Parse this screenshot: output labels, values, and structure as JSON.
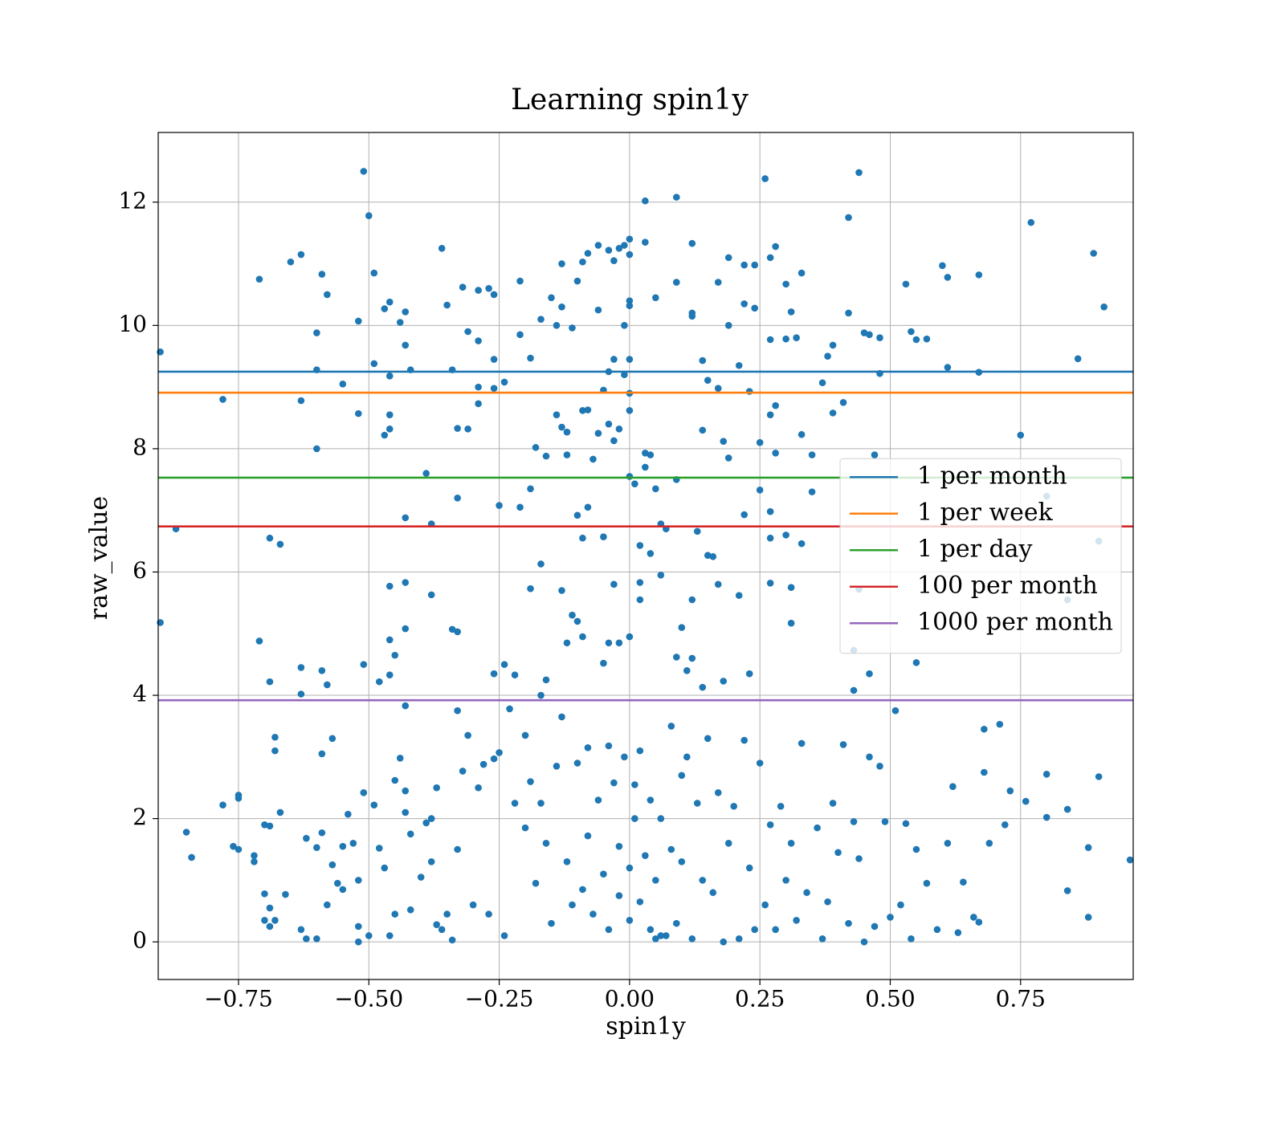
{
  "chart_data": {
    "type": "scatter",
    "title": "Learning spin1y",
    "xlabel": "spin1y",
    "ylabel": "raw_value",
    "color": "#1f77b4",
    "grid": true,
    "legend_loc": "center right",
    "xlim": [
      -0.904,
      0.966
    ],
    "ylim": [
      -0.61,
      13.13
    ],
    "xticks": [
      {
        "value": -0.75,
        "label": "−0.75"
      },
      {
        "value": -0.5,
        "label": "−0.50"
      },
      {
        "value": -0.25,
        "label": "−0.25"
      },
      {
        "value": 0,
        "label": "0.00"
      },
      0.25,
      {
        "value": 0.5,
        "label": "0.50"
      },
      0.75
    ],
    "yticks": [
      0,
      2,
      4,
      6,
      8,
      10,
      12
    ],
    "hlines": [
      {
        "name": "1 per month",
        "color": "#1f77b4",
        "value": 9.25
      },
      {
        "name": "1 per week",
        "color": "#ff7f0e",
        "value": 8.91
      },
      {
        "name": "1 per day",
        "color": "#2ca02c",
        "value": 7.53
      },
      {
        "name": "100 per month",
        "color": "#d62728",
        "value": 6.74
      },
      {
        "name": "1000 per month",
        "color": "#9467bd",
        "value": 3.92
      }
    ],
    "x": [
      -0.51,
      -0.5,
      -0.36,
      -0.63,
      -0.65,
      -0.71,
      -0.59,
      -0.58,
      -0.49,
      -0.47,
      -0.46,
      -0.44,
      -0.43,
      -0.52,
      -0.6,
      -0.43,
      -0.49,
      -0.46,
      -0.42,
      -0.6,
      -0.55,
      -0.9,
      -0.78,
      -0.63,
      -0.52,
      -0.46,
      -0.47,
      -0.46,
      -0.6,
      -0.39,
      -0.38,
      -0.33,
      -0.33,
      -0.31,
      -0.34,
      -0.35,
      -0.31,
      -0.32,
      -0.29,
      -0.27,
      -0.26,
      -0.29,
      -0.26,
      -0.24,
      -0.29,
      -0.26,
      -0.29,
      -0.21,
      -0.21,
      -0.19,
      -0.15,
      -0.14,
      -0.17,
      -0.13,
      -0.13,
      -0.11,
      -0.1,
      -0.09,
      -0.08,
      -0.06,
      -0.04,
      -0.03,
      -0.02,
      -0.01,
      0.0,
      0.0,
      0.03,
      0.03,
      0.09,
      0.12,
      0.26,
      0.27,
      0.28,
      0.19,
      0.22,
      0.24,
      0.17,
      0.09,
      0.0,
      0.0,
      -0.06,
      0.05,
      0.12,
      0.12,
      0.19,
      0.22,
      0.24,
      0.3,
      0.33,
      0.31,
      0.27,
      0.3,
      0.32,
      0.39,
      0.38,
      0.42,
      0.42,
      0.44,
      0.45,
      0.46,
      0.48,
      0.48,
      0.53,
      0.54,
      0.55,
      0.57,
      0.6,
      0.61,
      0.61,
      0.67,
      0.67,
      0.77,
      0.89,
      0.91,
      0.86,
      0.75,
      0.8,
      0.9,
      0.84,
      0.55,
      0.46,
      0.43,
      0.43,
      0.44,
      0.33,
      0.28,
      0.25,
      0.27,
      0.28,
      0.27,
      0.27,
      0.25,
      0.22,
      0.21,
      0.27,
      0.31,
      0.31,
      0.33,
      0.3,
      0.35,
      0.35,
      0.37,
      0.39,
      0.41,
      0.47,
      0.19,
      0.18,
      0.17,
      0.15,
      0.14,
      0.21,
      0.23,
      0.14,
      0.15,
      0.16,
      0.17,
      0.13,
      0.12,
      0.1,
      0.09,
      0.11,
      0.12,
      0.14,
      0.18,
      0.23,
      0.06,
      0.06,
      0.07,
      0.04,
      0.02,
      0.02,
      0.02,
      0.03,
      0.03,
      0.04,
      0.0,
      0.0,
      -0.01,
      0.0,
      -0.01,
      -0.03,
      -0.04,
      -0.05,
      -0.04,
      -0.02,
      -0.03,
      -0.06,
      -0.08,
      -0.09,
      -0.07,
      -0.08,
      -0.09,
      -0.1,
      -0.12,
      -0.12,
      -0.13,
      -0.14,
      -0.16,
      -0.18,
      -0.19,
      -0.21,
      -0.25,
      -0.17,
      -0.19,
      -0.13,
      -0.11,
      -0.1,
      -0.12,
      -0.09,
      -0.05,
      -0.04,
      -0.02,
      0.0,
      -0.03,
      -0.05,
      0.0,
      0.01,
      0.09,
      0.05,
      -0.43,
      -0.69,
      -0.67,
      -0.87,
      -0.9,
      -0.46,
      -0.43,
      -0.43,
      -0.38,
      -0.34,
      -0.33,
      -0.45,
      -0.46,
      -0.48,
      -0.46,
      -0.43,
      -0.51,
      -0.69,
      -0.71,
      -0.63,
      -0.63,
      -0.59,
      -0.58,
      -0.26,
      -0.24,
      -0.22,
      -0.16,
      -0.17,
      -0.85,
      -0.84,
      -0.78,
      -0.75,
      -0.75,
      -0.76,
      -0.75,
      -0.72,
      -0.72,
      -0.7,
      -0.69,
      -0.7,
      -0.69,
      -0.7,
      -0.68,
      -0.69,
      -0.68,
      -0.68,
      -0.67,
      -0.66,
      -0.63,
      -0.62,
      -0.6,
      -0.62,
      -0.6,
      -0.59,
      -0.59,
      -0.58,
      -0.57,
      -0.57,
      -0.56,
      -0.55,
      -0.55,
      -0.54,
      -0.53,
      -0.52,
      -0.52,
      -0.51,
      -0.52,
      -0.5,
      -0.49,
      -0.48,
      -0.47,
      -0.46,
      -0.45,
      -0.45,
      -0.44,
      -0.43,
      -0.43,
      -0.42,
      -0.42,
      -0.4,
      -0.39,
      -0.38,
      -0.38,
      -0.37,
      -0.37,
      -0.36,
      -0.35,
      -0.34,
      -0.33,
      -0.33,
      -0.32,
      -0.31,
      -0.3,
      -0.29,
      -0.28,
      -0.27,
      -0.26,
      -0.25,
      -0.24,
      -0.23,
      -0.22,
      -0.2,
      -0.2,
      -0.19,
      -0.18,
      -0.17,
      -0.16,
      -0.15,
      -0.14,
      -0.13,
      -0.12,
      -0.11,
      -0.1,
      -0.09,
      -0.08,
      -0.08,
      -0.07,
      -0.06,
      -0.05,
      -0.04,
      -0.04,
      -0.03,
      -0.02,
      -0.02,
      -0.01,
      0.0,
      0.0,
      0.01,
      0.01,
      0.02,
      0.02,
      0.03,
      0.04,
      0.04,
      0.05,
      0.05,
      0.06,
      0.06,
      0.07,
      0.08,
      0.08,
      0.09,
      0.1,
      0.1,
      0.11,
      0.12,
      0.13,
      0.14,
      0.15,
      0.16,
      0.17,
      0.18,
      0.19,
      0.2,
      0.21,
      0.22,
      0.23,
      0.24,
      0.25,
      0.26,
      0.27,
      0.28,
      0.29,
      0.3,
      0.31,
      0.32,
      0.33,
      0.34,
      0.36,
      0.37,
      0.38,
      0.39,
      0.4,
      0.41,
      0.42,
      0.43,
      0.44,
      0.45,
      0.46,
      0.47,
      0.48,
      0.49,
      0.5,
      0.51,
      0.52,
      0.53,
      0.54,
      0.55,
      0.57,
      0.59,
      0.61,
      0.62,
      0.63,
      0.64,
      0.66,
      0.67,
      0.68,
      0.68,
      0.69,
      0.71,
      0.72,
      0.73,
      0.76,
      0.8,
      0.8,
      0.84,
      0.84,
      0.88,
      0.88,
      0.9,
      0.96
    ],
    "values": [
      12.5,
      11.78,
      11.25,
      11.15,
      11.03,
      10.75,
      10.83,
      10.5,
      10.85,
      10.27,
      10.38,
      10.05,
      10.22,
      10.07,
      9.88,
      9.68,
      9.38,
      9.18,
      9.28,
      9.28,
      9.05,
      9.57,
      8.8,
      8.78,
      8.57,
      8.55,
      8.22,
      8.32,
      8.0,
      7.6,
      6.78,
      7.2,
      8.33,
      8.32,
      9.28,
      10.33,
      9.9,
      10.62,
      10.57,
      10.6,
      10.5,
      9.75,
      9.45,
      9.08,
      9.0,
      8.98,
      8.73,
      10.72,
      9.85,
      9.47,
      10.45,
      10.0,
      10.1,
      11.0,
      10.3,
      9.96,
      10.72,
      11.03,
      11.17,
      11.3,
      11.22,
      11.05,
      11.25,
      11.3,
      11.4,
      11.15,
      11.35,
      12.02,
      12.08,
      11.33,
      12.38,
      11.1,
      11.28,
      11.1,
      10.98,
      10.98,
      10.7,
      10.7,
      10.4,
      10.32,
      10.25,
      10.45,
      10.2,
      10.15,
      10.0,
      10.35,
      10.28,
      10.67,
      10.85,
      10.22,
      9.77,
      9.78,
      9.8,
      9.68,
      9.5,
      10.2,
      11.75,
      12.48,
      9.88,
      9.85,
      9.8,
      9.22,
      10.67,
      9.9,
      9.77,
      9.78,
      10.97,
      10.78,
      9.32,
      10.82,
      9.24,
      11.67,
      11.17,
      10.3,
      9.46,
      8.22,
      7.23,
      6.5,
      5.55,
      4.53,
      4.35,
      4.08,
      4.73,
      5.72,
      8.23,
      8.7,
      8.1,
      8.55,
      7.93,
      6.98,
      6.55,
      7.33,
      6.93,
      5.62,
      5.82,
      5.75,
      5.17,
      6.46,
      6.6,
      7.3,
      7.9,
      9.07,
      8.58,
      8.75,
      7.9,
      7.85,
      8.12,
      8.98,
      9.11,
      9.43,
      9.35,
      8.93,
      8.3,
      6.27,
      6.25,
      5.8,
      6.66,
      5.55,
      5.1,
      4.62,
      4.4,
      4.6,
      4.13,
      4.23,
      4.35,
      5.95,
      6.78,
      6.7,
      6.3,
      6.43,
      5.83,
      5.55,
      7.7,
      7.93,
      7.9,
      8.62,
      8.9,
      9.2,
      9.45,
      10.0,
      9.45,
      9.25,
      8.95,
      8.4,
      8.32,
      8.13,
      8.25,
      8.63,
      8.62,
      7.83,
      7.05,
      6.55,
      6.92,
      7.9,
      8.27,
      8.35,
      8.55,
      7.88,
      8.02,
      7.35,
      7.05,
      7.08,
      6.13,
      5.73,
      5.7,
      5.3,
      5.2,
      4.85,
      4.95,
      4.52,
      4.85,
      4.85,
      4.95,
      5.8,
      6.57,
      7.55,
      7.43,
      7.5,
      7.35,
      6.88,
      6.55,
      6.45,
      6.7,
      5.18,
      5.77,
      5.83,
      5.08,
      5.63,
      5.07,
      5.03,
      4.65,
      4.9,
      4.22,
      4.33,
      3.83,
      4.5,
      4.22,
      4.88,
      4.45,
      4.02,
      4.4,
      4.17,
      4.35,
      4.5,
      4.33,
      4.25,
      4.0,
      1.78,
      1.37,
      2.22,
      2.38,
      2.33,
      1.55,
      1.5,
      1.4,
      1.3,
      1.9,
      1.88,
      0.78,
      0.55,
      0.35,
      0.35,
      0.25,
      3.32,
      3.1,
      2.1,
      0.77,
      0.2,
      0.05,
      0.05,
      1.68,
      1.53,
      3.05,
      1.77,
      0.6,
      3.3,
      1.25,
      0.95,
      1.55,
      0.85,
      2.07,
      1.6,
      1.0,
      0.25,
      2.42,
      0.0,
      0.1,
      2.22,
      1.52,
      1.2,
      0.1,
      0.45,
      2.62,
      2.98,
      2.45,
      2.1,
      1.75,
      0.52,
      1.05,
      1.93,
      2.0,
      1.3,
      2.5,
      0.28,
      0.2,
      0.45,
      0.03,
      3.75,
      1.5,
      2.77,
      3.35,
      0.6,
      2.5,
      2.88,
      0.45,
      2.97,
      3.07,
      0.1,
      3.78,
      2.25,
      3.35,
      1.85,
      2.6,
      0.95,
      2.25,
      1.6,
      0.3,
      2.85,
      3.65,
      1.3,
      0.6,
      2.9,
      0.85,
      3.15,
      1.72,
      0.45,
      2.3,
      1.1,
      0.2,
      3.18,
      2.58,
      1.55,
      0.75,
      3.0,
      1.2,
      0.35,
      2.0,
      2.55,
      0.65,
      3.1,
      1.4,
      0.2,
      2.3,
      0.05,
      1.0,
      0.1,
      2.0,
      0.1,
      1.5,
      3.5,
      0.3,
      2.7,
      1.3,
      3.0,
      0.05,
      2.25,
      1.0,
      3.3,
      0.8,
      2.42,
      0.0,
      1.6,
      2.2,
      0.05,
      3.27,
      1.2,
      0.2,
      2.9,
      0.6,
      1.9,
      0.2,
      2.2,
      1.0,
      1.6,
      0.35,
      3.22,
      0.8,
      1.85,
      0.05,
      0.65,
      2.25,
      1.45,
      3.2,
      0.3,
      1.95,
      1.35,
      0.0,
      3.0,
      0.25,
      2.85,
      1.95,
      0.4,
      3.75,
      0.6,
      1.92,
      0.05,
      1.5,
      0.95,
      0.2,
      1.6,
      2.52,
      0.15,
      0.97,
      0.4,
      0.32,
      3.45,
      2.75,
      1.6,
      3.53,
      1.9,
      2.45,
      2.28,
      2.72,
      2.02,
      2.15,
      0.83,
      1.53,
      0.4,
      2.68,
      1.33
    ]
  }
}
